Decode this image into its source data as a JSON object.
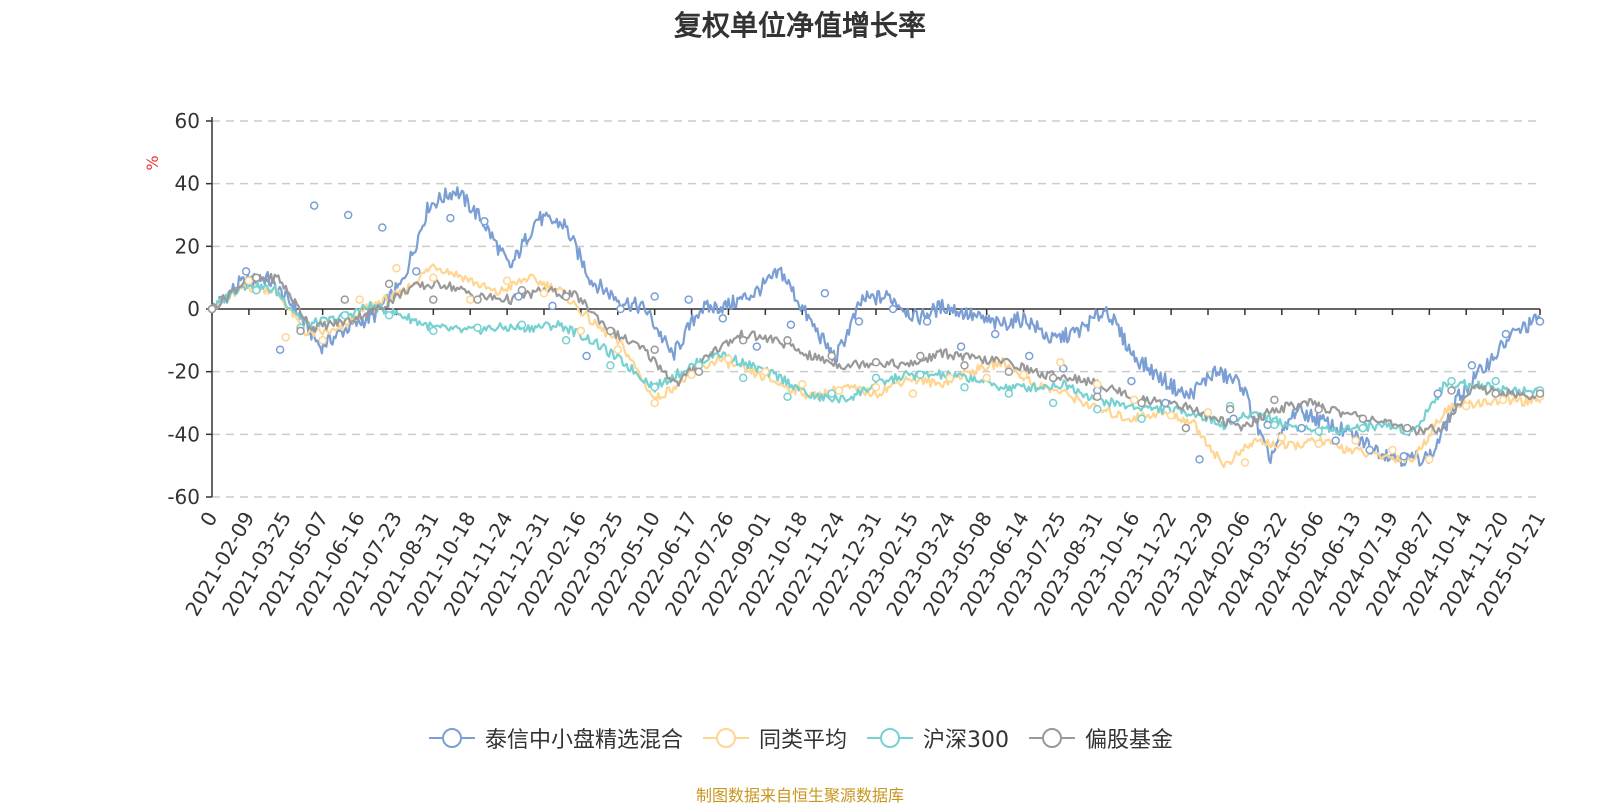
{
  "chart_data": {
    "type": "line",
    "title": "复权单位净值增长率",
    "ylabel": "%",
    "xlabel": "",
    "ylim": [
      -60,
      60
    ],
    "yticks": [
      60,
      40,
      20,
      0,
      -20,
      -40,
      -60
    ],
    "grid": true,
    "legend_position": "bottom-center",
    "x_tick_labels": [
      "0",
      "2021-02-09",
      "2021-03-25",
      "2021-05-07",
      "2021-06-16",
      "2021-07-23",
      "2021-08-31",
      "2021-10-18",
      "2021-11-24",
      "2021-12-31",
      "2022-02-16",
      "2022-03-25",
      "2022-05-10",
      "2022-06-17",
      "2022-07-26",
      "2022-09-01",
      "2022-10-18",
      "2022-11-24",
      "2022-12-31",
      "2023-02-15",
      "2023-03-24",
      "2023-05-08",
      "2023-06-14",
      "2023-07-25",
      "2023-08-31",
      "2023-10-16",
      "2023-11-22",
      "2023-12-29",
      "2024-02-06",
      "2024-03-22",
      "2024-05-06",
      "2024-06-13",
      "2024-07-19",
      "2024-08-27",
      "2024-10-14",
      "2024-11-20",
      "2025-01-21"
    ],
    "series": [
      {
        "name": "泰信中小盘精选混合",
        "color": "#7b9fd4",
        "values": [
          0,
          8,
          10,
          1,
          -12,
          -6,
          -2,
          8,
          33,
          38,
          28,
          13,
          29,
          27,
          9,
          3,
          0,
          -15,
          0,
          1,
          5,
          12,
          -3,
          -16,
          3,
          4,
          -3,
          1,
          -2,
          -5,
          -3,
          -10,
          -7,
          0,
          -15,
          -22,
          -28,
          -20,
          -24,
          -48,
          -32,
          -36,
          -40,
          -45,
          -48,
          -47,
          -28,
          -18,
          -8,
          -3
        ]
      },
      {
        "name": "同类平均",
        "color": "#ffd591",
        "values": [
          0,
          7,
          6,
          -8,
          -7,
          1,
          5,
          14,
          10,
          5,
          10,
          6,
          -4,
          -12,
          -29,
          -22,
          -16,
          -20,
          -24,
          -28,
          -25,
          -27,
          -22,
          -24,
          -20,
          -17,
          -24,
          -27,
          -32,
          -35,
          -33,
          -36,
          -50,
          -42,
          -44,
          -42,
          -45,
          -47,
          -48,
          -32,
          -30,
          -29,
          -30
        ]
      },
      {
        "name": "沪深300",
        "color": "#77d1d0",
        "values": [
          0,
          8,
          6,
          -5,
          -3,
          1,
          -2,
          -6,
          -7,
          -6,
          -6,
          -5,
          -10,
          -17,
          -25,
          -19,
          -14,
          -18,
          -22,
          -28,
          -29,
          -24,
          -21,
          -21,
          -22,
          -25,
          -25,
          -24,
          -29,
          -31,
          -32,
          -33,
          -37,
          -33,
          -37,
          -39,
          -38,
          -37,
          -39,
          -24,
          -24,
          -26,
          -26
        ]
      },
      {
        "name": "偏股基金",
        "color": "#999999",
        "values": [
          0,
          9,
          10,
          -6,
          -4,
          0,
          7,
          8,
          4,
          3,
          6,
          4,
          -7,
          -13,
          -24,
          -14,
          -8,
          -10,
          -15,
          -18,
          -17,
          -18,
          -14,
          -16,
          -17,
          -21,
          -22,
          -25,
          -29,
          -30,
          -34,
          -38,
          -32,
          -30,
          -33,
          -35,
          -39,
          -38,
          -25,
          -27,
          -28
        ]
      }
    ],
    "markers": {
      "泰信中小盘精选混合": [
        0,
        12,
        -13,
        33,
        30,
        26,
        12,
        29,
        28,
        4,
        1,
        -15,
        0,
        4,
        3,
        -3,
        -12,
        -5,
        5,
        -4,
        0,
        -4,
        -12,
        -8,
        -15,
        -19,
        -26,
        -23,
        -30,
        -48,
        -35,
        -37,
        -38,
        -42,
        -45,
        -47,
        -27,
        -18,
        -8,
        -4
      ],
      "同类平均": [
        0,
        9,
        -9,
        -10,
        3,
        13,
        10,
        3,
        9,
        5,
        -7,
        -13,
        -30,
        -21,
        -16,
        -20,
        -24,
        -26,
        -25,
        -27,
        -22,
        -22,
        -21,
        -17,
        -24,
        -29,
        -34,
        -33,
        -49,
        -41,
        -43,
        -42,
        -45,
        -48,
        -31,
        -29,
        -28
      ],
      "沪深300": [
        0,
        6,
        -6,
        -2,
        -2,
        -7,
        -6,
        -5,
        -10,
        -18,
        -25,
        -18,
        -22,
        -28,
        -27,
        -22,
        -21,
        -25,
        -27,
        -30,
        -32,
        -35,
        -38,
        -31,
        -37,
        -39,
        -38,
        -39,
        -23,
        -23,
        -26
      ],
      "偏股基金": [
        0,
        10,
        -7,
        3,
        8,
        3,
        3,
        6,
        4,
        -7,
        -13,
        -20,
        -10,
        -10,
        -15,
        -17,
        -15,
        -18,
        -20,
        -22,
        -28,
        -30,
        -38,
        -32,
        -29,
        -32,
        -35,
        -38,
        -26,
        -27,
        -27
      ]
    }
  },
  "source_note": "制图数据来自恒生聚源数据库"
}
